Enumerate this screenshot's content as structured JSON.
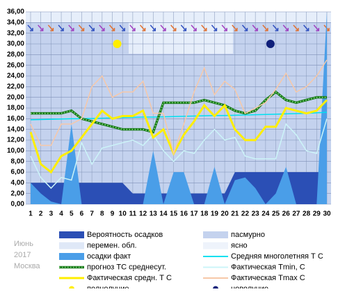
{
  "chart_data": {
    "type": "line",
    "caption": [
      "Июнь",
      "2017",
      "Москва"
    ],
    "categories": [
      "1",
      "2",
      "3",
      "4",
      "5",
      "6",
      "7",
      "8",
      "9",
      "10",
      "11",
      "12",
      "13",
      "14",
      "15",
      "16",
      "17",
      "18",
      "19",
      "20",
      "21",
      "22",
      "23",
      "24",
      "25",
      "26",
      "27",
      "28",
      "29",
      "30"
    ],
    "ylim": [
      0,
      36
    ],
    "yticks": [
      {
        "value": 0,
        "label": "0,00"
      },
      {
        "value": 2,
        "label": "2,00"
      },
      {
        "value": 4,
        "label": "4,00"
      },
      {
        "value": 6,
        "label": "6,00"
      },
      {
        "value": 8,
        "label": "8,00"
      },
      {
        "value": 10,
        "label": "10,00"
      },
      {
        "value": 12,
        "label": "12,00"
      },
      {
        "value": 14,
        "label": "14,00"
      },
      {
        "value": 16,
        "label": "16,00"
      },
      {
        "value": 18,
        "label": "18,00"
      },
      {
        "value": 20,
        "label": "20,00"
      },
      {
        "value": 22,
        "label": "22,00"
      },
      {
        "value": 24,
        "label": "24,00"
      },
      {
        "value": 26,
        "label": "26,00"
      },
      {
        "value": 28,
        "label": "28,00"
      },
      {
        "value": 30,
        "label": "30,00"
      },
      {
        "value": 32,
        "label": "32,00"
      },
      {
        "value": 34,
        "label": "34,00"
      },
      {
        "value": 36,
        "label": "36,00"
      }
    ],
    "grid": true,
    "series": [
      {
        "name": "Вероятность осадков",
        "kind": "area",
        "color": "#2b4fb5",
        "values": [
          4,
          4,
          4,
          4,
          4,
          4,
          4,
          4,
          4,
          4,
          2,
          2,
          2,
          2,
          2,
          2,
          2,
          2,
          2,
          2,
          6,
          6,
          6,
          6,
          6,
          6,
          6,
          6,
          6,
          6
        ]
      },
      {
        "name": "осадки факт",
        "kind": "area",
        "color": "#4a9ee8",
        "values": [
          4,
          2,
          0.5,
          0,
          15,
          0,
          0,
          0,
          0,
          0,
          0,
          0,
          10,
          0,
          6,
          6,
          0,
          0,
          7,
          0,
          4.5,
          5,
          3,
          0,
          2,
          7,
          0,
          0,
          0,
          36
        ]
      },
      {
        "name": "Средняя многолетняя Т С",
        "kind": "line",
        "color": "#00e0f0",
        "values": [
          15.8,
          15.85,
          15.9,
          15.95,
          16,
          16,
          16.05,
          16.1,
          16.15,
          16.2,
          16.25,
          16.3,
          16.3,
          16.35,
          16.4,
          16.45,
          16.5,
          16.55,
          16.6,
          16.6,
          16.65,
          16.7,
          16.75,
          16.8,
          16.85,
          16.9,
          16.95,
          17,
          17.1,
          17.2
        ]
      },
      {
        "name": "прогноз ТС среднесут.",
        "kind": "dotted",
        "color": "#1a7a1a",
        "values": [
          17,
          17,
          17,
          17,
          17.5,
          16,
          15.5,
          15,
          14.5,
          14,
          14,
          14,
          13.5,
          19,
          19,
          19,
          19,
          19.5,
          19,
          18.5,
          17.5,
          17,
          17.5,
          19.5,
          21,
          19.5,
          19,
          19.5,
          20,
          20
        ]
      },
      {
        "name": "Фактическая Tmin, C",
        "kind": "line",
        "color": "#ccf4f8",
        "values": [
          9,
          5,
          3,
          5,
          4.5,
          11.5,
          7.5,
          10.5,
          11,
          11.5,
          12,
          11,
          13,
          10,
          8,
          10,
          9.5,
          12,
          14,
          12,
          12.5,
          9,
          8.5,
          8.5,
          8.5,
          15,
          13,
          10,
          9.5,
          16
        ]
      },
      {
        "name": "Фактическая средн. Т С",
        "kind": "thick",
        "color": "#ffee00",
        "values": [
          13.5,
          7.5,
          6,
          9,
          10,
          12.5,
          15,
          17.5,
          16,
          16.5,
          16.5,
          17.5,
          12.5,
          14,
          9.5,
          13,
          15.5,
          18.5,
          16.5,
          18.5,
          14,
          12,
          12,
          14.5,
          14.5,
          18,
          17.5,
          17,
          17.5,
          19.5
        ]
      },
      {
        "name": "Фактическая Tmax С",
        "kind": "line",
        "color": "#f7c8a8",
        "values": [
          15,
          11,
          11,
          15,
          15,
          16,
          22,
          24,
          20,
          21,
          21,
          23,
          17,
          17,
          9.5,
          15,
          21,
          25.5,
          20.5,
          23,
          21.5,
          17,
          18,
          19,
          21.5,
          24.5,
          21,
          22,
          24,
          27
        ]
      }
    ],
    "bands": [
      {
        "name": "перемен. обл.",
        "color": "#dfe8f7"
      },
      {
        "name": "пасмурно",
        "color": "#c4d2ee"
      },
      {
        "name": "ясно",
        "color": "#eef3fb"
      }
    ],
    "moons": [
      {
        "name": "полнолуние",
        "day": 9,
        "color": "#ffee00"
      },
      {
        "name": "новолуние",
        "day": 24,
        "color": "#10207a"
      }
    ]
  }
}
